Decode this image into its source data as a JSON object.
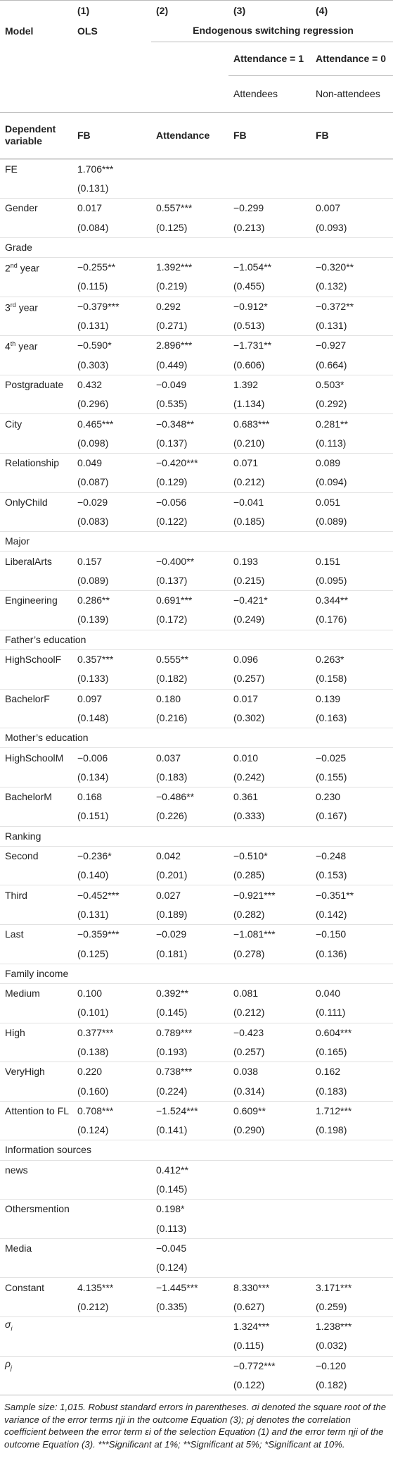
{
  "header": {
    "col_numbers": [
      "(1)",
      "(2)",
      "(3)",
      "(4)"
    ],
    "model_label": "Model",
    "ols": "OLS",
    "esr": "Endogenous switching regression",
    "attendance1": "Attendance = 1",
    "attendance0": "Attendance = 0",
    "attendees": "Attendees",
    "non_attendees": "Non-attendees",
    "dependent_label": "Dependent variable",
    "dependents": [
      "FB",
      "Attendance",
      "FB",
      "FB"
    ]
  },
  "table": {
    "rows": [
      {
        "label": "FE",
        "cells": [
          "1.706***",
          null,
          null,
          null
        ]
      },
      {
        "cells": [
          "(0.131)",
          null,
          null,
          null
        ]
      },
      {
        "label": "Gender",
        "cells": [
          "0.017",
          "0.557***",
          "−0.299",
          "0.007"
        ]
      },
      {
        "cells": [
          "(0.084)",
          "(0.125)",
          "(0.213)",
          "(0.093)"
        ]
      },
      {
        "label": "Grade"
      },
      {
        "label": "2nd year",
        "cells": [
          "−0.255**",
          "1.392***",
          "−1.054**",
          "−0.320**"
        ]
      },
      {
        "cells": [
          "(0.115)",
          "(0.219)",
          "(0.455)",
          "(0.132)"
        ]
      },
      {
        "label": "3rd year",
        "cells": [
          "−0.379***",
          "0.292",
          "−0.912*",
          "−0.372**"
        ]
      },
      {
        "cells": [
          "(0.131)",
          "(0.271)",
          "(0.513)",
          "(0.131)"
        ]
      },
      {
        "label": "4th year",
        "cells": [
          "−0.590*",
          "2.896***",
          "−1.731**",
          "−0.927"
        ]
      },
      {
        "cells": [
          "(0.303)",
          "(0.449)",
          "(0.606)",
          "(0.664)"
        ]
      },
      {
        "label": "Postgraduate",
        "cells": [
          "0.432",
          "−0.049",
          "1.392",
          "0.503*"
        ]
      },
      {
        "cells": [
          "(0.296)",
          "(0.535)",
          "(1.134)",
          "(0.292)"
        ]
      },
      {
        "label": "City",
        "cells": [
          "0.465***",
          "−0.348**",
          "0.683***",
          "0.281**"
        ]
      },
      {
        "cells": [
          "(0.098)",
          "(0.137)",
          "(0.210)",
          "(0.113)"
        ]
      },
      {
        "label": "Relationship",
        "cells": [
          "0.049",
          "−0.420***",
          "0.071",
          "0.089"
        ]
      },
      {
        "cells": [
          "(0.087)",
          "(0.129)",
          "(0.212)",
          "(0.094)"
        ]
      },
      {
        "label": "OnlyChild",
        "cells": [
          "−0.029",
          "−0.056",
          "−0.041",
          "0.051"
        ]
      },
      {
        "cells": [
          "(0.083)",
          "(0.122)",
          "(0.185)",
          "(0.089)"
        ]
      },
      {
        "label": "Major"
      },
      {
        "label": "LiberalArts",
        "cells": [
          "0.157",
          "−0.400**",
          "0.193",
          "0.151"
        ]
      },
      {
        "cells": [
          "(0.089)",
          "(0.137)",
          "(0.215)",
          "(0.095)"
        ]
      },
      {
        "label": "Engineering",
        "cells": [
          "0.286**",
          "0.691***",
          "−0.421*",
          "0.344**"
        ]
      },
      {
        "cells": [
          "(0.139)",
          "(0.172)",
          "(0.249)",
          "(0.176)"
        ]
      },
      {
        "label": "Father’s education"
      },
      {
        "label": "HighSchoolF",
        "cells": [
          "0.357***",
          "0.555**",
          "0.096",
          "0.263*"
        ]
      },
      {
        "cells": [
          "(0.133)",
          "(0.182)",
          "(0.257)",
          "(0.158)"
        ]
      },
      {
        "label": "BachelorF",
        "cells": [
          "0.097",
          "0.180",
          "0.017",
          "0.139"
        ]
      },
      {
        "cells": [
          "(0.148)",
          "(0.216)",
          "(0.302)",
          "(0.163)"
        ]
      },
      {
        "label": "Mother’s education"
      },
      {
        "label": "HighSchoolM",
        "cells": [
          "−0.006",
          "0.037",
          "0.010",
          "−0.025"
        ]
      },
      {
        "cells": [
          "(0.134)",
          "(0.183)",
          "(0.242)",
          "(0.155)"
        ]
      },
      {
        "label": "BachelorM",
        "cells": [
          "0.168",
          "−0.486**",
          "0.361",
          "0.230"
        ]
      },
      {
        "cells": [
          "(0.151)",
          "(0.226)",
          "(0.333)",
          "(0.167)"
        ]
      },
      {
        "label": "Ranking"
      },
      {
        "label": "Second",
        "cells": [
          "−0.236*",
          "0.042",
          "−0.510*",
          "−0.248"
        ]
      },
      {
        "cells": [
          "(0.140)",
          "(0.201)",
          "(0.285)",
          "(0.153)"
        ]
      },
      {
        "label": "Third",
        "cells": [
          "−0.452***",
          "0.027",
          "−0.921***",
          "−0.351**"
        ]
      },
      {
        "cells": [
          "(0.131)",
          "(0.189)",
          "(0.282)",
          "(0.142)"
        ]
      },
      {
        "label": "Last",
        "cells": [
          "−0.359***",
          "−0.029",
          "−1.081***",
          "−0.150"
        ]
      },
      {
        "cells": [
          "(0.125)",
          "(0.181)",
          "(0.278)",
          "(0.136)"
        ]
      },
      {
        "label": "Family income"
      },
      {
        "label": "Medium",
        "cells": [
          "0.100",
          "0.392**",
          "0.081",
          "0.040"
        ]
      },
      {
        "cells": [
          "(0.101)",
          "(0.145)",
          "(0.212)",
          "(0.111)"
        ]
      },
      {
        "label": "High",
        "cells": [
          "0.377***",
          "0.789***",
          "−0.423",
          "0.604***"
        ]
      },
      {
        "cells": [
          "(0.138)",
          "(0.193)",
          "(0.257)",
          "(0.165)"
        ]
      },
      {
        "label": "VeryHigh",
        "cells": [
          "0.220",
          "0.738***",
          "0.038",
          "0.162"
        ]
      },
      {
        "cells": [
          "(0.160)",
          "(0.224)",
          "(0.314)",
          "(0.183)"
        ]
      },
      {
        "label": "Attention to FL",
        "cells": [
          "0.708***",
          "−1.524***",
          "0.609**",
          "1.712***"
        ]
      },
      {
        "cells": [
          "(0.124)",
          "(0.141)",
          "(0.290)",
          "(0.198)"
        ]
      },
      {
        "label": "Information sources"
      },
      {
        "label": "news",
        "cells": [
          null,
          "0.412**",
          null,
          null
        ]
      },
      {
        "cells": [
          null,
          "(0.145)",
          null,
          null
        ]
      },
      {
        "label": "Othersmention",
        "cells": [
          null,
          "0.198*",
          null,
          null
        ]
      },
      {
        "cells": [
          null,
          "(0.113)",
          null,
          null
        ]
      },
      {
        "label": "Media",
        "cells": [
          null,
          "−0.045",
          null,
          null
        ]
      },
      {
        "cells": [
          null,
          "(0.124)",
          null,
          null
        ]
      },
      {
        "label": "Constant",
        "cells": [
          "4.135***",
          "−1.445***",
          "8.330***",
          "3.171***"
        ]
      },
      {
        "cells": [
          "(0.212)",
          "(0.335)",
          "(0.627)",
          "(0.259)"
        ]
      },
      {
        "label": "σi",
        "cells": [
          null,
          null,
          "1.324***",
          "1.238***"
        ]
      },
      {
        "cells": [
          null,
          null,
          "(0.115)",
          "(0.032)"
        ]
      },
      {
        "label": "ρj",
        "cells": [
          null,
          null,
          "−0.772***",
          "−0.120"
        ]
      },
      {
        "cells": [
          null,
          null,
          "(0.122)",
          "(0.182)"
        ]
      }
    ]
  },
  "footnote": "Sample size: 1,015. Robust standard errors in parentheses. σi denoted the square root of the variance of the error terms ηji in the outcome Equation (3); ρj denotes the correlation coefficient between the error term εi of the selection Equation (1) and the error term ηji of the outcome Equation (3). ***Significant at 1%; **Significant at 5%; *Significant at 10%."
}
